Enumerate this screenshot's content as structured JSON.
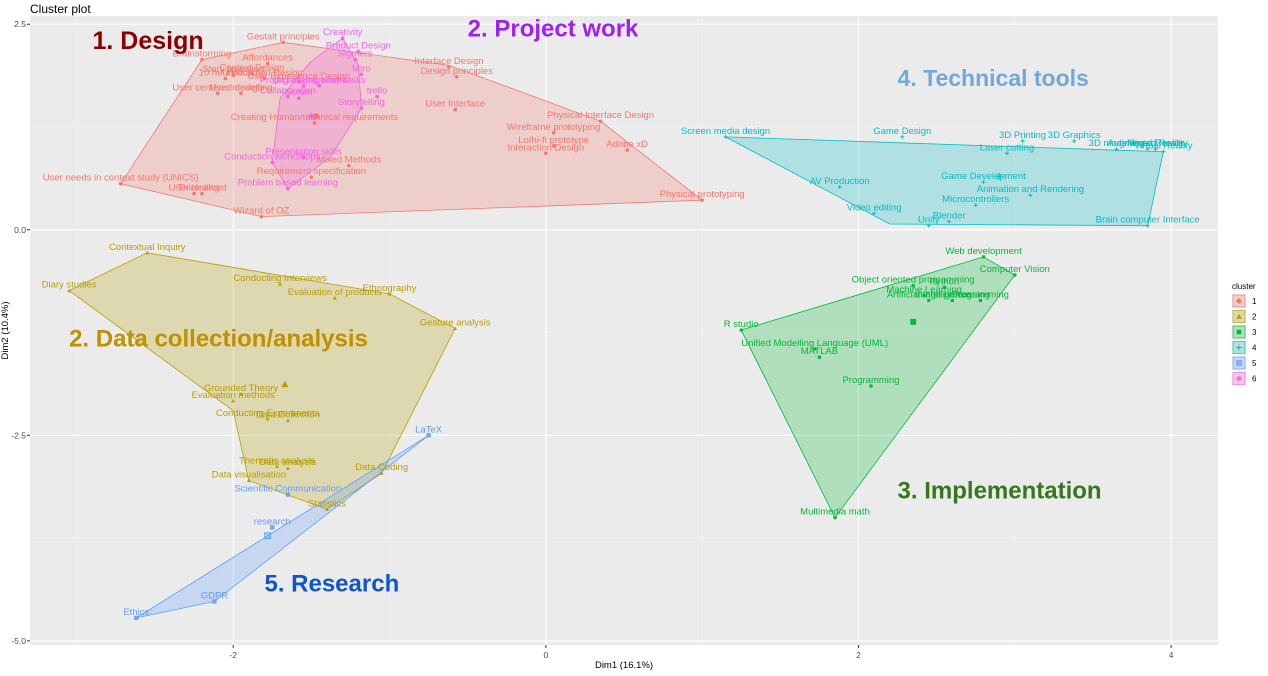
{
  "title": "Cluster plot",
  "chart_data": {
    "type": "scatter",
    "title": "Cluster plot",
    "xlabel": "Dim1 (16.1%)",
    "ylabel": "Dim2 (10.4%)",
    "xlim": [
      -3.3,
      4.3
    ],
    "ylim": [
      -5.05,
      2.6
    ],
    "xticks": [
      -2,
      0,
      2,
      4
    ],
    "yticks": [
      -5.0,
      -2.5,
      0.0,
      2.5
    ],
    "xtick_labels": [
      "-2",
      "0",
      "2",
      "4"
    ],
    "ytick_labels": [
      "-5.0",
      "-2.5",
      "0.0",
      "2.5"
    ],
    "grid": true,
    "legend": {
      "title": "cluster",
      "position": "right",
      "entries": [
        "1",
        "2",
        "3",
        "4",
        "5",
        "6"
      ]
    },
    "group_labels": [
      {
        "text": "1. Design",
        "cluster": 1,
        "x": -2.9,
        "y": 2.2,
        "color": "#8b0000",
        "size": 25
      },
      {
        "text": "2. Project work",
        "cluster": 6,
        "x": -0.5,
        "y": 2.35,
        "color": "#a020f0",
        "size": 24
      },
      {
        "text": "4. Technical tools",
        "cluster": 4,
        "x": 2.25,
        "y": 1.75,
        "color": "#6fa8dc",
        "size": 23
      },
      {
        "text": "2. Data collection/analysis",
        "cluster": 2,
        "x": -3.05,
        "y": -1.42,
        "color": "#bf9000",
        "size": 24
      },
      {
        "text": "3. Implementation",
        "cluster": 3,
        "x": 2.25,
        "y": -3.27,
        "color": "#38761d",
        "size": 24
      },
      {
        "text": "5. Research",
        "cluster": 5,
        "x": -1.8,
        "y": -4.4,
        "color": "#1155cc",
        "size": 24
      }
    ],
    "clusters": [
      {
        "name": "1",
        "color": "#f8766d",
        "hull": [
          [
            -2.72,
            0.56
          ],
          [
            -2.2,
            2.07
          ],
          [
            -1.68,
            2.28
          ],
          [
            -0.62,
            2.0
          ],
          [
            0.35,
            1.32
          ],
          [
            1.0,
            0.36
          ],
          [
            -1.82,
            0.16
          ]
        ],
        "centroid": [
          -1.47,
          1.38
        ],
        "points": [
          {
            "label": "Gestalt principles",
            "x": -1.68,
            "y": 2.28
          },
          {
            "label": "Brainstorming",
            "x": -2.2,
            "y": 2.07
          },
          {
            "label": "Affordances",
            "x": -1.78,
            "y": 2.02
          },
          {
            "label": "Story boarding",
            "x": -2.0,
            "y": 1.88
          },
          {
            "label": "Context Design",
            "x": -1.88,
            "y": 1.9
          },
          {
            "label": "10 heuristics",
            "x": -2.05,
            "y": 1.84
          },
          {
            "label": "Interaction Design",
            "x": -1.8,
            "y": 1.84
          },
          {
            "label": "User Experience Design",
            "x": -1.58,
            "y": 1.8
          },
          {
            "label": "User centered design",
            "x": -2.1,
            "y": 1.66
          },
          {
            "label": "User modelling",
            "x": -1.95,
            "y": 1.66
          },
          {
            "label": "Interface Design",
            "x": -0.62,
            "y": 1.98
          },
          {
            "label": "Design principles",
            "x": -0.57,
            "y": 1.86
          },
          {
            "label": "User Interface",
            "x": -0.58,
            "y": 1.46
          },
          {
            "label": "Physical Interface Design",
            "x": 0.35,
            "y": 1.32
          },
          {
            "label": "Wireframe prototyping",
            "x": 0.05,
            "y": 1.18
          },
          {
            "label": "Lo/hi-fi prototype",
            "x": 0.05,
            "y": 1.02
          },
          {
            "label": "Interaction Design",
            "x": 0.0,
            "y": 0.93
          },
          {
            "label": "Adobe xD",
            "x": 0.52,
            "y": 0.97
          },
          {
            "label": "Creating Human/technical requirements",
            "x": -1.48,
            "y": 1.3
          },
          {
            "label": "Mixed Methods",
            "x": -1.26,
            "y": 0.78
          },
          {
            "label": "Requirement specification",
            "x": -1.5,
            "y": 0.64
          },
          {
            "label": "User needs in context study (UNICS)",
            "x": -2.72,
            "y": 0.56
          },
          {
            "label": "User testing",
            "x": -2.25,
            "y": 0.44
          },
          {
            "label": "Think aloud",
            "x": -2.2,
            "y": 0.44
          },
          {
            "label": "Wizard of OZ",
            "x": -1.82,
            "y": 0.16
          },
          {
            "label": "Physical prototyping",
            "x": 1.0,
            "y": 0.36
          }
        ]
      },
      {
        "name": "2",
        "color": "#b79f00",
        "hull": [
          [
            -3.05,
            -0.74
          ],
          [
            -2.55,
            -0.28
          ],
          [
            -1.0,
            -0.78
          ],
          [
            -0.58,
            -1.2
          ],
          [
            -1.05,
            -2.96
          ],
          [
            -1.4,
            -3.4
          ],
          [
            -1.9,
            -3.05
          ],
          [
            -2.0,
            -2.2
          ]
        ],
        "centroid": [
          -1.67,
          -1.88
        ],
        "points": [
          {
            "label": "Contextual Inquiry",
            "x": -2.55,
            "y": -0.28
          },
          {
            "label": "Diary studies",
            "x": -3.05,
            "y": -0.74
          },
          {
            "label": "Conducting Interviews",
            "x": -1.7,
            "y": -0.66
          },
          {
            "label": "Evaluation of products",
            "x": -1.35,
            "y": -0.83
          },
          {
            "label": "Ethnography",
            "x": -1.0,
            "y": -0.78
          },
          {
            "label": "Gesture analysis",
            "x": -0.58,
            "y": -1.2
          },
          {
            "label": "Grounded Theory",
            "x": -1.95,
            "y": -2.0
          },
          {
            "label": "Evaluation methods",
            "x": -2.0,
            "y": -2.08
          },
          {
            "label": "Conducting Experiments",
            "x": -1.78,
            "y": -2.3
          },
          {
            "label": "Data Collection",
            "x": -1.65,
            "y": -2.32
          },
          {
            "label": "Thematic analysis",
            "x": -1.72,
            "y": -2.88
          },
          {
            "label": "Data analysis",
            "x": -1.65,
            "y": -2.9
          },
          {
            "label": "Data visualisation",
            "x": -1.9,
            "y": -3.05
          },
          {
            "label": "Data Coding",
            "x": -1.05,
            "y": -2.96
          },
          {
            "label": "Statistics",
            "x": -1.4,
            "y": -3.4
          }
        ]
      },
      {
        "name": "3",
        "color": "#00ba38",
        "hull": [
          [
            1.25,
            -1.22
          ],
          [
            2.8,
            -0.33
          ],
          [
            3.0,
            -0.55
          ],
          [
            1.85,
            -3.5
          ]
        ],
        "centroid": [
          2.35,
          -1.12
        ],
        "points": [
          {
            "label": "Web development",
            "x": 2.8,
            "y": -0.33
          },
          {
            "label": "Computer Vision",
            "x": 3.0,
            "y": -0.55
          },
          {
            "label": "Object oriented programming",
            "x": 2.35,
            "y": -0.68
          },
          {
            "label": "Python",
            "x": 2.55,
            "y": -0.7
          },
          {
            "label": "Machine Learning",
            "x": 2.42,
            "y": -0.8
          },
          {
            "label": "Artificial Intelligence",
            "x": 2.45,
            "y": -0.86
          },
          {
            "label": "Image processing",
            "x": 2.6,
            "y": -0.86
          },
          {
            "label": "Programming",
            "x": 2.78,
            "y": -0.86
          },
          {
            "label": "R studio",
            "x": 1.25,
            "y": -1.22
          },
          {
            "label": "Unified Modelling Language (UML)",
            "x": 1.72,
            "y": -1.45
          },
          {
            "label": "MATLAB",
            "x": 1.75,
            "y": -1.55
          },
          {
            "label": "Programming",
            "x": 2.08,
            "y": -1.9
          },
          {
            "label": "Multimedia math",
            "x": 1.85,
            "y": -3.5
          }
        ]
      },
      {
        "name": "4",
        "color": "#00bfc4",
        "hull": [
          [
            1.15,
            1.13
          ],
          [
            3.95,
            0.95
          ],
          [
            3.85,
            0.05
          ],
          [
            2.2,
            0.07
          ]
        ],
        "centroid": [
          2.9,
          0.65
        ],
        "points": [
          {
            "label": "Screen media design",
            "x": 1.15,
            "y": 1.13
          },
          {
            "label": "Game Design",
            "x": 2.28,
            "y": 1.13
          },
          {
            "label": "3D Printing",
            "x": 3.05,
            "y": 1.08
          },
          {
            "label": "3D Graphics",
            "x": 3.38,
            "y": 1.08
          },
          {
            "label": "3D modelling",
            "x": 3.65,
            "y": 0.98
          },
          {
            "label": "Augmented Reality",
            "x": 3.85,
            "y": 0.98
          },
          {
            "label": "Virtual Reality",
            "x": 3.95,
            "y": 0.95
          },
          {
            "label": "Mixed Reality",
            "x": 3.9,
            "y": 0.98
          },
          {
            "label": "Laser cutting",
            "x": 2.95,
            "y": 0.93
          },
          {
            "label": "AV Production",
            "x": 1.88,
            "y": 0.52
          },
          {
            "label": "Game Development",
            "x": 2.8,
            "y": 0.58
          },
          {
            "label": "Animation and Rendering",
            "x": 3.1,
            "y": 0.42
          },
          {
            "label": "Microcontrollers",
            "x": 2.75,
            "y": 0.3
          },
          {
            "label": "Video editing",
            "x": 2.1,
            "y": 0.2
          },
          {
            "label": "Blender",
            "x": 2.58,
            "y": 0.1
          },
          {
            "label": "Unity",
            "x": 2.45,
            "y": 0.05
          },
          {
            "label": "Brain computer Interface",
            "x": 3.85,
            "y": 0.05
          }
        ]
      },
      {
        "name": "5",
        "color": "#619cff",
        "hull": [
          [
            -0.75,
            -2.5
          ],
          [
            -2.62,
            -4.72
          ],
          [
            -2.12,
            -4.52
          ]
        ],
        "centroid": [
          -1.78,
          -3.72
        ],
        "points": [
          {
            "label": "LaTeX",
            "x": -0.75,
            "y": -2.5
          },
          {
            "label": "Scientific Communication",
            "x": -1.65,
            "y": -3.22
          },
          {
            "label": "research",
            "x": -1.75,
            "y": -3.62
          },
          {
            "label": "GDPR",
            "x": -2.12,
            "y": -4.52
          },
          {
            "label": "Ethics",
            "x": -2.62,
            "y": -4.72
          }
        ]
      },
      {
        "name": "6",
        "color": "#f564e3",
        "hull": [
          [
            -1.3,
            2.33
          ],
          [
            -1.2,
            2.0
          ],
          [
            -1.18,
            1.48
          ],
          [
            -1.38,
            0.88
          ],
          [
            -1.65,
            0.5
          ],
          [
            -1.75,
            0.82
          ],
          [
            -1.7,
            1.6
          ],
          [
            -1.5,
            2.05
          ]
        ],
        "centroid": [
          -1.5,
          1.38
        ],
        "points": [
          {
            "label": "Creativity",
            "x": -1.3,
            "y": 2.33
          },
          {
            "label": "Product Design",
            "x": -1.2,
            "y": 2.17
          },
          {
            "label": "Sigmers",
            "x": -1.22,
            "y": 2.07
          },
          {
            "label": "Miro",
            "x": -1.18,
            "y": 1.89
          },
          {
            "label": "Project management",
            "x": -1.55,
            "y": 1.75
          },
          {
            "label": "Organizing work tasks",
            "x": -1.45,
            "y": 1.75
          },
          {
            "label": "trello",
            "x": -1.08,
            "y": 1.62
          },
          {
            "label": "Collaboration",
            "x": -1.65,
            "y": 1.62
          },
          {
            "label": "Scrum",
            "x": -1.58,
            "y": 1.6
          },
          {
            "label": "Storytelling",
            "x": -1.18,
            "y": 1.48
          },
          {
            "label": "Presentation skills",
            "x": -1.55,
            "y": 0.88
          },
          {
            "label": "Conduction workshops",
            "x": -1.75,
            "y": 0.82
          },
          {
            "label": "Problem based learning",
            "x": -1.65,
            "y": 0.5
          }
        ]
      }
    ]
  }
}
